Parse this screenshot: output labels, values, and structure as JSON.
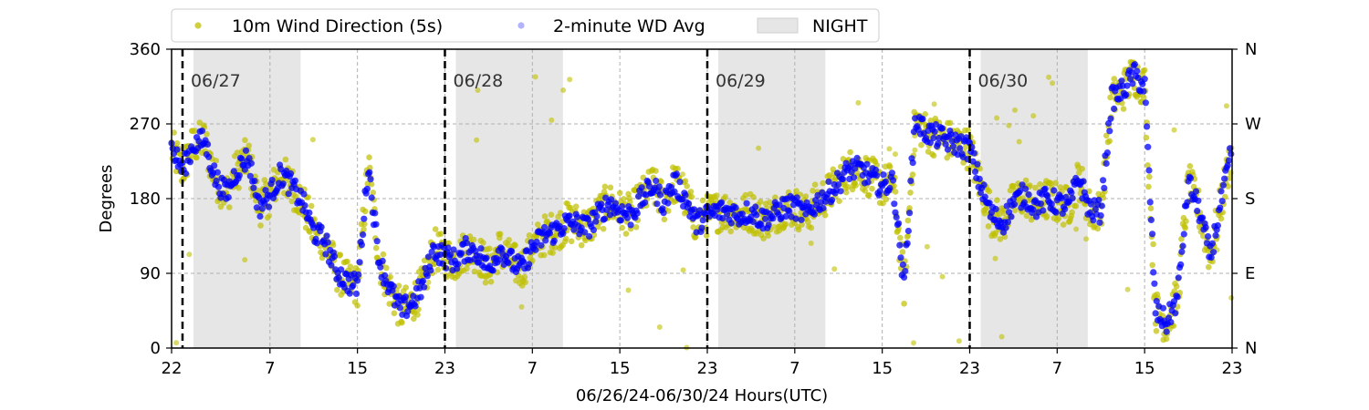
{
  "chart_data": {
    "type": "scatter",
    "xlabel": "06/26/24-06/30/24  Hours(UTC)",
    "ylabel": "Degrees",
    "ylim": [
      0,
      360
    ],
    "yticks": [
      0,
      90,
      180,
      270,
      360
    ],
    "right_yticks": [
      {
        "value": 0,
        "label": "N"
      },
      {
        "value": 90,
        "label": "E"
      },
      {
        "value": 180,
        "label": "S"
      },
      {
        "value": 270,
        "label": "W"
      },
      {
        "value": 360,
        "label": "N"
      }
    ],
    "x_range_hours": [
      0,
      97
    ],
    "xticks": [
      {
        "hour": 0,
        "label": "22"
      },
      {
        "hour": 9,
        "label": "7"
      },
      {
        "hour": 17,
        "label": "15"
      },
      {
        "hour": 25,
        "label": "23"
      },
      {
        "hour": 33,
        "label": "7"
      },
      {
        "hour": 41,
        "label": "15"
      },
      {
        "hour": 49,
        "label": "23"
      },
      {
        "hour": 57,
        "label": "7"
      },
      {
        "hour": 65,
        "label": "15"
      },
      {
        "hour": 73,
        "label": "23"
      },
      {
        "hour": 81,
        "label": "7"
      },
      {
        "hour": 89,
        "label": "15"
      },
      {
        "hour": 97,
        "label": "23"
      }
    ],
    "grid": true,
    "legend_position": "top",
    "legend": [
      {
        "name": "10m Wind Direction (5s)",
        "color": "#bfbf00",
        "marker": "dot"
      },
      {
        "name": "2-minute WD Avg",
        "color": "#0000ff",
        "marker": "dot"
      },
      {
        "name": "NIGHT",
        "color": "#e6e6e6",
        "marker": "patch"
      }
    ],
    "day_markers": [
      {
        "hour": 1,
        "label": "06/27"
      },
      {
        "hour": 25,
        "label": "06/28"
      },
      {
        "hour": 49,
        "label": "06/29"
      },
      {
        "hour": 73,
        "label": "06/30"
      }
    ],
    "night_shading": [
      [
        2,
        11.8
      ],
      [
        26,
        35.8
      ],
      [
        50,
        59.8
      ],
      [
        74,
        83.8
      ]
    ],
    "series": [
      {
        "name": "10m Wind Direction (5s)",
        "color": "#bfbf00",
        "x": [
          0,
          1,
          2,
          3,
          4,
          5,
          6,
          7,
          8,
          9,
          10,
          11,
          12,
          13,
          14,
          15,
          16,
          17,
          18,
          19,
          20,
          21,
          22,
          23,
          24,
          25,
          26,
          27,
          28,
          29,
          30,
          31,
          32,
          33,
          34,
          35,
          36,
          37,
          38,
          39,
          40,
          41,
          42,
          43,
          44,
          45,
          46,
          47,
          48,
          49,
          50,
          51,
          52,
          53,
          54,
          55,
          56,
          57,
          58,
          59,
          60,
          61,
          62,
          63,
          64,
          65,
          66,
          67,
          68,
          69,
          70,
          71,
          72,
          73,
          74,
          75,
          76,
          77,
          78,
          79,
          80,
          81,
          82,
          83,
          84,
          85,
          86,
          87,
          88,
          89,
          90,
          91,
          92,
          93,
          94,
          95,
          96,
          97
        ],
        "y": [
          240,
          215,
          245,
          250,
          205,
          185,
          215,
          230,
          170,
          185,
          210,
          195,
          175,
          140,
          130,
          95,
          80,
          75,
          220,
          105,
          70,
          45,
          55,
          75,
          120,
          110,
          105,
          120,
          115,
          95,
          120,
          105,
          95,
          120,
          135,
          140,
          150,
          150,
          145,
          160,
          175,
          165,
          160,
          180,
          195,
          175,
          200,
          180,
          150,
          160,
          165,
          165,
          160,
          165,
          155,
          160,
          170,
          170,
          160,
          175,
          185,
          200,
          215,
          215,
          205,
          195,
          200,
          75,
          275,
          260,
          255,
          250,
          245,
          240,
          195,
          160,
          150,
          175,
          185,
          170,
          180,
          175,
          170,
          205,
          165,
          165,
          300,
          310,
          330,
          315,
          45,
          30,
          60,
          200,
          165,
          110,
          175,
          240
        ],
        "spread": 25
      },
      {
        "name": "2-minute WD Avg",
        "color": "#0000ff",
        "x": [
          0,
          1,
          2,
          3,
          4,
          5,
          6,
          7,
          8,
          9,
          10,
          11,
          12,
          13,
          14,
          15,
          16,
          17,
          18,
          19,
          20,
          21,
          22,
          23,
          24,
          25,
          26,
          27,
          28,
          29,
          30,
          31,
          32,
          33,
          34,
          35,
          36,
          37,
          38,
          39,
          40,
          41,
          42,
          43,
          44,
          45,
          46,
          47,
          48,
          49,
          50,
          51,
          52,
          53,
          54,
          55,
          56,
          57,
          58,
          59,
          60,
          61,
          62,
          63,
          64,
          65,
          66,
          67,
          68,
          69,
          70,
          71,
          72,
          73,
          74,
          75,
          76,
          77,
          78,
          79,
          80,
          81,
          82,
          83,
          84,
          85,
          86,
          87,
          88,
          89,
          90,
          91,
          92,
          93,
          94,
          95,
          96,
          97
        ],
        "y": [
          240,
          215,
          245,
          250,
          205,
          185,
          215,
          230,
          170,
          185,
          210,
          195,
          175,
          140,
          130,
          95,
          80,
          75,
          220,
          105,
          70,
          45,
          55,
          75,
          120,
          110,
          105,
          120,
          115,
          95,
          120,
          105,
          95,
          120,
          135,
          140,
          150,
          150,
          145,
          160,
          175,
          165,
          160,
          180,
          195,
          175,
          200,
          180,
          150,
          160,
          165,
          165,
          160,
          165,
          155,
          160,
          170,
          170,
          160,
          175,
          185,
          200,
          215,
          215,
          205,
          195,
          200,
          75,
          275,
          260,
          255,
          250,
          245,
          240,
          195,
          160,
          150,
          175,
          185,
          170,
          180,
          175,
          170,
          205,
          165,
          165,
          300,
          310,
          330,
          315,
          45,
          30,
          60,
          200,
          165,
          110,
          175,
          240
        ],
        "spread": 14
      }
    ]
  }
}
